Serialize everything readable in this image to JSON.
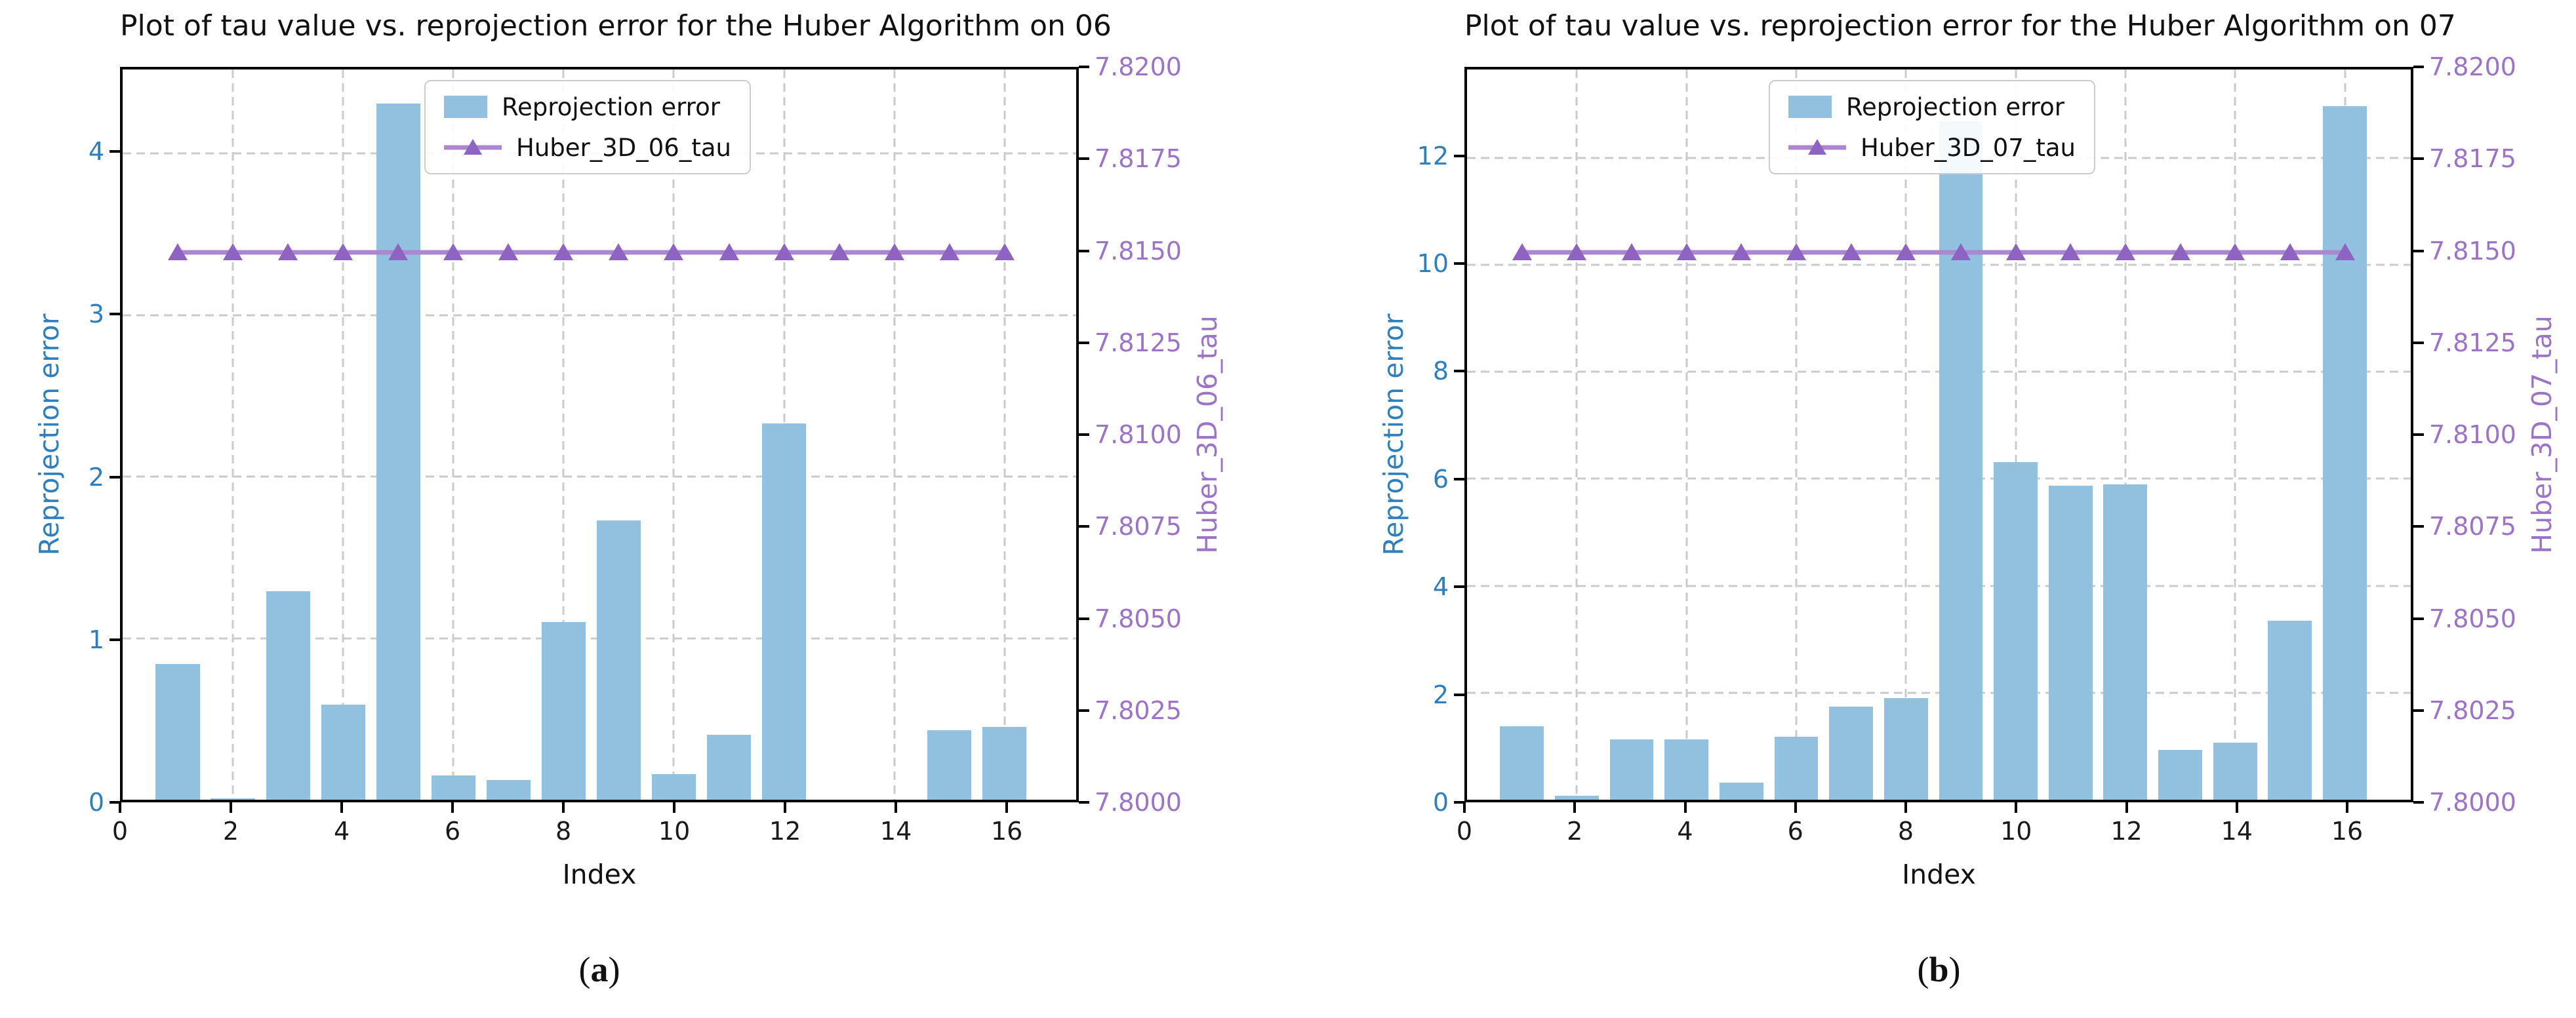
{
  "colors": {
    "bar_fill": "#92c1e0",
    "tau_line": "#aa87d0",
    "tau_marker": "#8e63c2",
    "left_axis_text": "#2e7fbb",
    "right_axis_text": "#9d73c8",
    "grid": "#cbcbcb",
    "spine": "#000000",
    "text": "#111111"
  },
  "chart_data": [
    {
      "type": "bar",
      "title": "Plot of tau value vs. reprojection error for the Huber Algorithm on 06",
      "xlabel": "Index",
      "ylabel_left": "Reprojection error",
      "ylabel_right": "Huber_3D_06_tau",
      "caption": {
        "prefix": "(",
        "label": "a",
        "suffix": ")"
      },
      "x": [
        1,
        2,
        3,
        4,
        5,
        6,
        7,
        8,
        9,
        10,
        11,
        12,
        13,
        14,
        15,
        16
      ],
      "series": [
        {
          "name": "Reprojection error",
          "type": "bar",
          "axis": "left",
          "values": [
            0.84,
            0.01,
            1.29,
            0.59,
            4.31,
            0.15,
            0.12,
            1.1,
            1.73,
            0.16,
            0.4,
            2.33,
            0.0,
            0.0,
            0.43,
            0.45
          ]
        },
        {
          "name": "Huber_3D_06_tau",
          "type": "line",
          "axis": "right",
          "marker": "triangle-up",
          "values": [
            7.815,
            7.815,
            7.815,
            7.815,
            7.815,
            7.815,
            7.815,
            7.815,
            7.815,
            7.815,
            7.815,
            7.815,
            7.815,
            7.815,
            7.815,
            7.815
          ]
        }
      ],
      "axes": {
        "x_ticks": [
          0,
          2,
          4,
          6,
          8,
          10,
          12,
          14,
          16
        ],
        "xlim": [
          0,
          17.3
        ],
        "left_ticks": [
          0,
          1,
          2,
          3,
          4
        ],
        "left_lim": [
          0,
          4.52
        ],
        "right_ticks": [
          "7.8000",
          "7.8025",
          "7.8050",
          "7.8075",
          "7.8100",
          "7.8125",
          "7.8150",
          "7.8175",
          "7.8200"
        ],
        "right_lim": [
          7.8,
          7.82
        ],
        "grid": true,
        "legend_position": "upper center",
        "bar_width": 0.8
      }
    },
    {
      "type": "bar",
      "title": "Plot of tau value vs. reprojection error for the Huber Algorithm on 07",
      "xlabel": "Index",
      "ylabel_left": "Reprojection error",
      "ylabel_right": "Huber_3D_07_tau",
      "caption": {
        "prefix": "(",
        "label": "b",
        "suffix": ")"
      },
      "x": [
        1,
        2,
        3,
        4,
        5,
        6,
        7,
        8,
        9,
        10,
        11,
        12,
        13,
        14,
        15,
        16
      ],
      "series": [
        {
          "name": "Reprojection error",
          "type": "bar",
          "axis": "left",
          "values": [
            1.37,
            0.07,
            1.13,
            1.13,
            0.32,
            1.18,
            1.74,
            1.9,
            12.68,
            6.31,
            5.87,
            5.9,
            0.93,
            1.07,
            3.34,
            12.97
          ]
        },
        {
          "name": "Huber_3D_07_tau",
          "type": "line",
          "axis": "right",
          "marker": "triangle-up",
          "values": [
            7.815,
            7.815,
            7.815,
            7.815,
            7.815,
            7.815,
            7.815,
            7.815,
            7.815,
            7.815,
            7.815,
            7.815,
            7.815,
            7.815,
            7.815,
            7.815
          ]
        }
      ],
      "axes": {
        "x_ticks": [
          0,
          2,
          4,
          6,
          8,
          10,
          12,
          14,
          16
        ],
        "xlim": [
          0,
          17.2
        ],
        "left_ticks": [
          0,
          2,
          4,
          6,
          8,
          10,
          12
        ],
        "left_lim": [
          0,
          13.65
        ],
        "right_ticks": [
          "7.8000",
          "7.8025",
          "7.8050",
          "7.8075",
          "7.8100",
          "7.8125",
          "7.8150",
          "7.8175",
          "7.8200"
        ],
        "right_lim": [
          7.8,
          7.82
        ],
        "grid": true,
        "legend_position": "upper center",
        "bar_width": 0.8
      }
    }
  ]
}
